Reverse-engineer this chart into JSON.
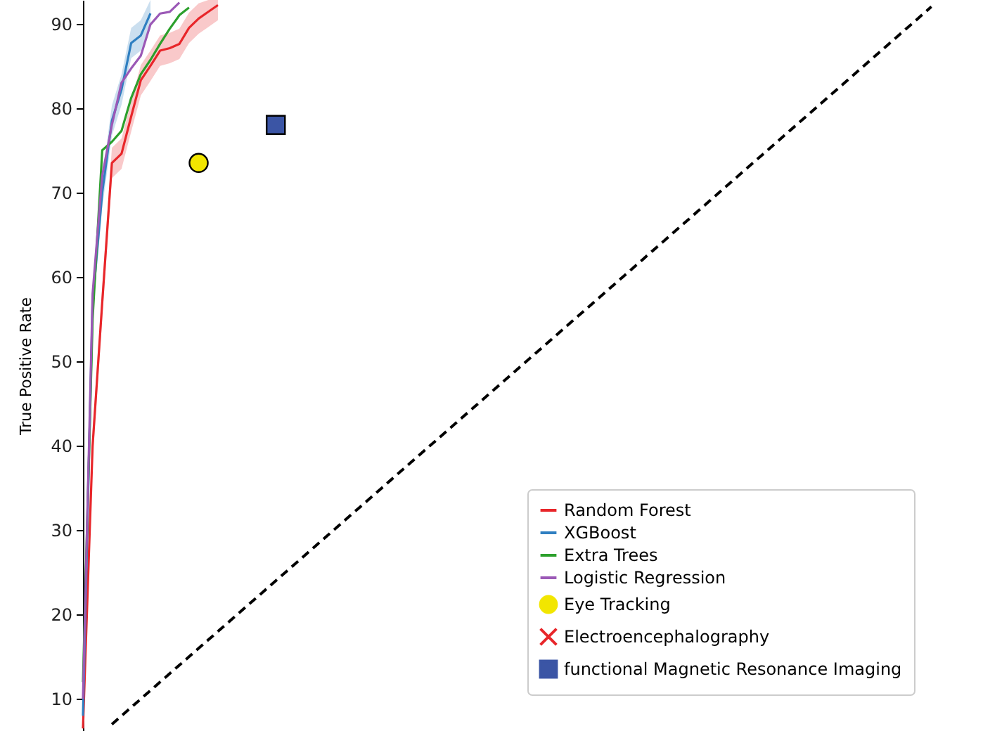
{
  "chart_data": {
    "type": "line",
    "ylabel": "True Positive Rate",
    "ylim": [
      6.2,
      92.8
    ],
    "yticks": [
      10,
      20,
      30,
      40,
      50,
      60,
      70,
      80,
      90
    ],
    "tick_labels": "y",
    "legend": "bottom right",
    "categories": [
      null,
      null,
      null,
      null,
      null,
      null,
      null,
      null,
      null,
      null,
      null,
      null,
      null,
      null,
      null,
      null,
      null,
      null,
      null,
      null,
      null,
      null,
      null,
      null,
      null,
      null,
      null,
      null,
      null,
      null,
      null,
      null,
      null,
      null,
      null,
      null,
      null,
      null,
      null,
      null,
      null,
      null,
      null,
      null,
      null,
      null,
      null,
      null,
      null,
      null,
      null,
      null,
      null,
      null,
      null,
      null,
      null,
      null,
      null,
      null,
      null,
      null,
      null,
      null,
      null,
      null,
      null,
      null,
      null,
      null,
      null,
      null,
      null,
      null,
      null,
      null,
      null,
      null,
      null,
      null,
      null,
      null,
      null,
      null,
      null,
      null,
      null,
      null,
      null,
      null,
      null
    ],
    "series": [
      {
        "name": "Random Forest",
        "color": "#e8262a",
        "values": [
          6.5,
          40,
          57,
          73.5,
          74.6,
          79,
          83.3,
          85,
          86.8,
          87.1,
          87.6,
          89.5,
          90.6,
          91.4,
          92.2,
          null,
          null,
          null,
          null,
          null,
          null,
          null,
          null,
          null,
          null,
          null,
          null,
          null,
          null,
          null,
          null,
          null,
          null,
          null,
          null,
          null,
          null,
          null,
          null,
          null,
          null,
          null,
          null,
          null,
          null,
          null,
          null,
          null,
          null,
          null,
          null,
          null,
          null,
          null,
          null,
          null,
          null,
          null,
          null,
          null,
          null,
          null,
          null,
          null,
          null,
          null,
          null,
          null,
          null,
          null,
          null,
          null,
          null,
          null,
          null,
          null,
          null,
          null,
          null,
          null,
          null,
          null,
          null,
          null,
          null,
          null,
          null,
          null,
          null,
          null,
          null
        ],
        "lower": [
          null,
          38.2,
          55.2,
          71.7,
          72.8,
          77.2,
          81.5,
          83.2,
          85,
          85.3,
          85.8,
          87.7,
          88.8,
          89.6,
          90.4,
          null,
          null,
          null,
          null,
          null,
          null,
          null,
          null,
          null,
          null,
          null,
          null,
          null,
          null,
          null,
          null,
          null,
          null,
          null,
          null,
          null,
          null,
          null,
          null,
          null,
          null,
          null,
          null,
          null,
          null,
          null,
          null,
          null,
          null,
          null,
          null,
          null,
          null,
          null,
          null,
          null,
          null,
          null,
          null,
          null,
          null,
          null,
          null,
          null,
          null,
          null,
          null,
          null,
          null,
          null,
          null,
          null,
          null,
          null,
          null,
          null,
          null,
          null,
          null,
          null,
          null,
          null,
          null,
          null,
          null,
          null,
          null,
          null,
          null,
          null,
          null
        ],
        "upper": [
          null,
          41.8,
          58.8,
          75.3,
          76.4,
          80.8,
          85.1,
          86.8,
          88.6,
          88.9,
          89.4,
          91.3,
          92.4,
          92.8,
          92.8,
          null,
          null,
          null,
          null,
          null,
          null,
          null,
          null,
          null,
          null,
          null,
          null,
          null,
          null,
          null,
          null,
          null,
          null,
          null,
          null,
          null,
          null,
          null,
          null,
          null,
          null,
          null,
          null,
          null,
          null,
          null,
          null,
          null,
          null,
          null,
          null,
          null,
          null,
          null,
          null,
          null,
          null,
          null,
          null,
          null,
          null,
          null,
          null,
          null,
          null,
          null,
          null,
          null,
          null,
          null,
          null,
          null,
          null,
          null,
          null,
          null,
          null,
          null,
          null,
          null,
          null,
          null,
          null,
          null,
          null,
          null,
          null,
          null,
          null,
          null,
          null
        ]
      },
      {
        "name": "XGBoost",
        "color": "#2f7fc1",
        "values": [
          8,
          57,
          70,
          78.5,
          82.2,
          87.7,
          88.6,
          91.2,
          null,
          null,
          null,
          null,
          null,
          null,
          null,
          null,
          null,
          null,
          null,
          null,
          null,
          null,
          null,
          null,
          null,
          null,
          null,
          null,
          null,
          null,
          null,
          null,
          null,
          null,
          null,
          null,
          null,
          null,
          null,
          null,
          null,
          null,
          null,
          null,
          null,
          null,
          null,
          null,
          null,
          null,
          null,
          null,
          null,
          null,
          null,
          null,
          null,
          null,
          null,
          null,
          null,
          null,
          null,
          null,
          null,
          null,
          null,
          null,
          null,
          null,
          null,
          null,
          null,
          null,
          null,
          null,
          null,
          null,
          null,
          null,
          null,
          null,
          null,
          null,
          null,
          null,
          null,
          null,
          null,
          null,
          null
        ],
        "lower": [
          6.2,
          55.2,
          68.2,
          76.7,
          80.4,
          85.9,
          86.8,
          89.4,
          null,
          null,
          null,
          null,
          null,
          null,
          null,
          null,
          null,
          null,
          null,
          null,
          null,
          null,
          null,
          null,
          null,
          null,
          null,
          null,
          null,
          null,
          null,
          null,
          null,
          null,
          null,
          null,
          null,
          null,
          null,
          null,
          null,
          null,
          null,
          null,
          null,
          null,
          null,
          null,
          null,
          null,
          null,
          null,
          null,
          null,
          null,
          null,
          null,
          null,
          null,
          null,
          null,
          null,
          null,
          null,
          null,
          null,
          null,
          null,
          null,
          null,
          null,
          null,
          null,
          null,
          null,
          null,
          null,
          null,
          null,
          null,
          null,
          null,
          null,
          null,
          null,
          null,
          null,
          null,
          null,
          null,
          null
        ],
        "upper": [
          9.8,
          58.8,
          71.8,
          80.3,
          84,
          89.5,
          90.4,
          92.8,
          null,
          null,
          null,
          null,
          null,
          null,
          null,
          null,
          null,
          null,
          null,
          null,
          null,
          null,
          null,
          null,
          null,
          null,
          null,
          null,
          null,
          null,
          null,
          null,
          null,
          null,
          null,
          null,
          null,
          null,
          null,
          null,
          null,
          null,
          null,
          null,
          null,
          null,
          null,
          null,
          null,
          null,
          null,
          null,
          null,
          null,
          null,
          null,
          null,
          null,
          null,
          null,
          null,
          null,
          null,
          null,
          null,
          null,
          null,
          null,
          null,
          null,
          null,
          null,
          null,
          null,
          null,
          null,
          null,
          null,
          null,
          null,
          null,
          null,
          null,
          null,
          null,
          null,
          null,
          null,
          null,
          null,
          null
        ]
      },
      {
        "name": "Extra Trees",
        "color": "#2ca02c",
        "values": [
          12,
          55,
          75,
          76,
          77.3,
          81.2,
          84,
          85.7,
          87.6,
          89.4,
          91,
          91.9,
          null,
          null,
          null,
          null,
          null,
          null,
          null,
          null,
          null,
          null,
          null,
          null,
          null,
          null,
          null,
          null,
          null,
          null,
          null,
          null,
          null,
          null,
          null,
          null,
          null,
          null,
          null,
          null,
          null,
          null,
          null,
          null,
          null,
          null,
          null,
          null,
          null,
          null,
          null,
          null,
          null,
          null,
          null,
          null,
          null,
          null,
          null,
          null,
          null,
          null,
          null,
          null,
          null,
          null,
          null,
          null,
          null,
          null,
          null,
          null,
          null,
          null,
          null,
          null,
          null,
          null,
          null,
          null,
          null,
          null,
          null,
          null,
          null,
          null,
          null,
          null,
          null,
          null,
          null
        ]
      },
      {
        "name": "Logistic Regression",
        "color": "#9b59b6",
        "values": [
          10,
          58,
          72,
          78,
          83,
          84.7,
          86.2,
          89.9,
          91.2,
          91.4,
          92.5,
          null,
          null,
          null,
          null,
          null,
          null,
          null,
          null,
          null,
          null,
          null,
          null,
          null,
          null,
          null,
          null,
          null,
          null,
          null,
          null,
          null,
          null,
          null,
          null,
          null,
          null,
          null,
          null,
          null,
          null,
          null,
          null,
          null,
          null,
          null,
          null,
          null,
          null,
          null,
          null,
          null,
          null,
          null,
          null,
          null,
          null,
          null,
          null,
          null,
          null,
          null,
          null,
          null,
          null,
          null,
          null,
          null,
          null,
          null,
          null,
          null,
          null,
          null,
          null,
          null,
          null,
          null,
          null,
          null,
          null,
          null,
          null,
          null,
          null,
          null,
          null,
          null,
          null,
          null,
          null
        ]
      },
      {
        "type": "line",
        "color": "#000000",
        "line_style": "dashed",
        "values": [
          null,
          null,
          null,
          7,
          8,
          9,
          10,
          11,
          12,
          13,
          14,
          15,
          16,
          17,
          18,
          19,
          20,
          21,
          22,
          23,
          24,
          25,
          26,
          27,
          28,
          29,
          30,
          31,
          32,
          33,
          34,
          35,
          36,
          37,
          38,
          39,
          40,
          41,
          42,
          43,
          44,
          45,
          46,
          47,
          48,
          49,
          50,
          51,
          52,
          53,
          54,
          55,
          56,
          57,
          58,
          59,
          60,
          61,
          62,
          63,
          64,
          65,
          66,
          67,
          68,
          69,
          70,
          71,
          72,
          73,
          74,
          75,
          76,
          77,
          78,
          79,
          80,
          81,
          82,
          83,
          84,
          85,
          86,
          87,
          88,
          89,
          90,
          91,
          92,
          null,
          null
        ]
      },
      {
        "type": "scatter",
        "name": "Eye Tracking",
        "color": "#f2e600",
        "marker": "circle",
        "values": [
          null,
          null,
          null,
          null,
          null,
          null,
          null,
          null,
          null,
          null,
          null,
          null,
          73.5,
          null,
          null,
          null,
          null,
          null,
          null,
          null,
          null,
          null,
          null,
          null,
          null,
          null,
          null,
          null,
          null,
          null,
          null,
          null,
          null,
          null,
          null,
          null,
          null,
          null,
          null,
          null,
          null,
          null,
          null,
          null,
          null,
          null,
          null,
          null,
          null,
          null,
          null,
          null,
          null,
          null,
          null,
          null,
          null,
          null,
          null,
          null,
          null,
          null,
          null,
          null,
          null,
          null,
          null,
          null,
          null,
          null,
          null,
          null,
          null,
          null,
          null,
          null,
          null,
          null,
          null,
          null,
          null,
          null,
          null,
          null,
          null,
          null,
          null,
          null,
          null,
          null,
          null
        ]
      },
      {
        "type": "scatter",
        "name": "Electroencephalography",
        "color": "#e8262a",
        "marker": "cross",
        "values": [
          null,
          null,
          null,
          null,
          null,
          null,
          null,
          null,
          null,
          null,
          null,
          null,
          null,
          null,
          null,
          null,
          null,
          null,
          null,
          null,
          null,
          null,
          null,
          null,
          null,
          null,
          null,
          null,
          null,
          null,
          null,
          null,
          null,
          null,
          null,
          null,
          null,
          null,
          null,
          null,
          null,
          null,
          null,
          null,
          null,
          null,
          null,
          null,
          null,
          null,
          null,
          null,
          null,
          null,
          null,
          null,
          null,
          null,
          null,
          null,
          null,
          null,
          null,
          null,
          null,
          null,
          null,
          null,
          null,
          null,
          null,
          null,
          null,
          null,
          null,
          null,
          null,
          null,
          null,
          null,
          null,
          null,
          null,
          null,
          null,
          null,
          null,
          null,
          null,
          null,
          null
        ]
      },
      {
        "type": "scatter",
        "name": "functional Magnetic Resonance Imaging",
        "color": "#3b55a5",
        "marker": "square",
        "values": [
          null,
          null,
          null,
          null,
          null,
          null,
          null,
          null,
          null,
          null,
          null,
          null,
          null,
          null,
          null,
          null,
          null,
          null,
          null,
          null,
          78,
          null,
          null,
          null,
          null,
          null,
          null,
          null,
          null,
          null,
          null,
          null,
          null,
          null,
          null,
          null,
          null,
          null,
          null,
          null,
          null,
          null,
          null,
          null,
          null,
          null,
          null,
          null,
          null,
          null,
          null,
          null,
          null,
          null,
          null,
          null,
          null,
          null,
          null,
          null,
          null,
          null,
          null,
          null,
          null,
          null,
          null,
          null,
          null,
          null,
          null,
          null,
          null,
          null,
          null,
          null,
          null,
          null,
          null,
          null,
          null,
          null,
          null,
          null,
          null,
          null,
          null,
          null,
          null,
          null,
          null
        ]
      }
    ]
  }
}
